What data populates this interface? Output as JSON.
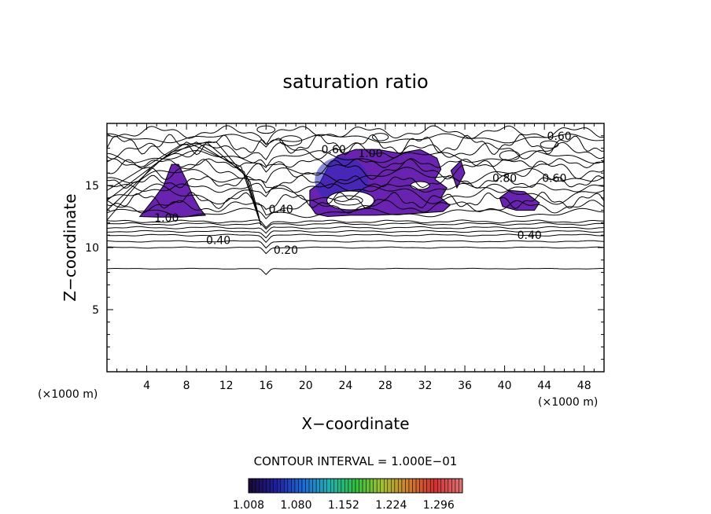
{
  "chart_data": {
    "type": "heatmap",
    "title": "saturation ratio",
    "xlabel": "X−coordinate",
    "ylabel": "Z−coordinate",
    "x_unit_left": "(×1000 m)",
    "x_unit_right": "(×1000 m)",
    "xlim": [
      0,
      50
    ],
    "ylim": [
      0,
      20
    ],
    "x_ticks": [
      4,
      8,
      12,
      16,
      20,
      24,
      28,
      32,
      36,
      40,
      44,
      48
    ],
    "x_tick_labels": [
      "4",
      "8",
      "12",
      "16",
      "20",
      "24",
      "28",
      "32",
      "36",
      "40",
      "44",
      "48"
    ],
    "y_ticks": [
      5,
      10,
      15
    ],
    "y_tick_labels": [
      "5",
      "10",
      "15"
    ],
    "contour_interval_text": "CONTOUR INTERVAL = 1.000E−01",
    "contour_labels": [
      {
        "text": "0.60",
        "x": 22.8,
        "y": 17.9
      },
      {
        "text": "1.00",
        "x": 26.5,
        "y": 17.6
      },
      {
        "text": "0.60",
        "x": 45.5,
        "y": 19.0
      },
      {
        "text": "0.80",
        "x": 40.0,
        "y": 15.6
      },
      {
        "text": "0.60",
        "x": 45.0,
        "y": 15.6
      },
      {
        "text": "1.00",
        "x": 6.0,
        "y": 12.4
      },
      {
        "text": "0.40",
        "x": 11.2,
        "y": 10.6
      },
      {
        "text": "0.40",
        "x": 17.5,
        "y": 13.1
      },
      {
        "text": "0.20",
        "x": 18.0,
        "y": 9.8
      },
      {
        "text": "0.40",
        "x": 42.5,
        "y": 11.0
      }
    ],
    "contour_levels": [
      0.2,
      0.4,
      0.6,
      0.8,
      1.0
    ],
    "supersaturated_regions": [
      {
        "name": "left",
        "x_range": [
          3.3,
          9.9
        ],
        "z_range": [
          12.5,
          16.8
        ]
      },
      {
        "name": "center",
        "x_range": [
          20.2,
          34.5
        ],
        "z_range": [
          12.4,
          18.0
        ]
      },
      {
        "name": "right",
        "x_range": [
          39.5,
          43.5
        ],
        "z_range": [
          13.0,
          14.6
        ]
      }
    ],
    "colorbar": {
      "min": 1.008,
      "max": 1.332,
      "tick_labels": [
        "1.008",
        "1.080",
        "1.152",
        "1.224",
        "1.296"
      ],
      "colors": [
        "#1a0a3c",
        "#2020a0",
        "#1e6ad8",
        "#20b0b0",
        "#30c040",
        "#a0c030",
        "#d08030",
        "#d03030",
        "#e07070"
      ]
    },
    "grid": false,
    "legend": "colorbar-bottom"
  }
}
